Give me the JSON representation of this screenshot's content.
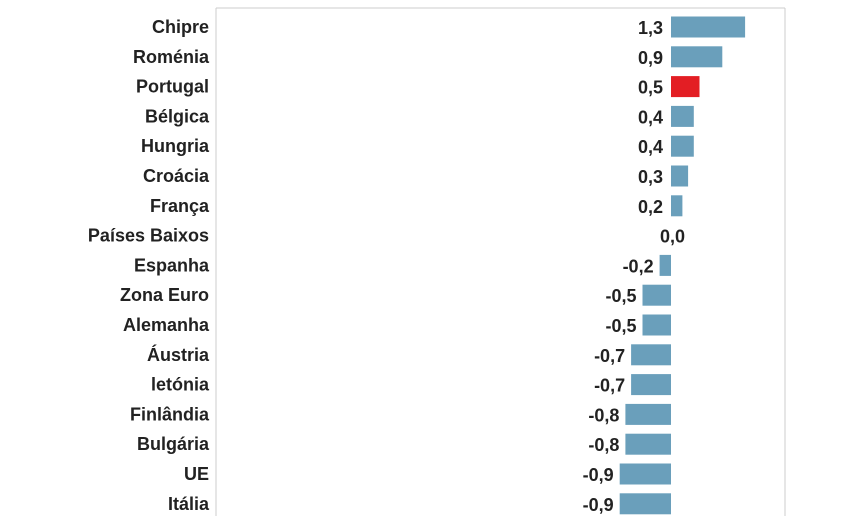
{
  "chart_data": {
    "type": "bar",
    "orientation": "horizontal",
    "categories": [
      "Chipre",
      "Roménia",
      "Portugal",
      "Bélgica",
      "Hungria",
      "Croácia",
      "França",
      "Países Baixos",
      "Espanha",
      "Zona Euro",
      "Alemanha",
      "Áustria",
      "letónia",
      "Finlândia",
      "Bulgária",
      "UE",
      "Itália"
    ],
    "values": [
      1.3,
      0.9,
      0.5,
      0.4,
      0.4,
      0.3,
      0.2,
      0.0,
      -0.2,
      -0.5,
      -0.5,
      -0.7,
      -0.7,
      -0.8,
      -0.8,
      -0.9,
      -0.9
    ],
    "value_labels": [
      "1,3",
      "0,9",
      "0,5",
      "0,4",
      "0,4",
      "0,3",
      "0,2",
      "0,0",
      "-0,2",
      "-0,5",
      "-0,5",
      "-0,7",
      "-0,7",
      "-0,8",
      "-0,8",
      "-0,9",
      "-0,9"
    ],
    "highlight_category": "Portugal",
    "colors": {
      "default": "#6a9fbb",
      "highlight": "#e31e24",
      "frame": "#cccccc",
      "text": "#222222"
    },
    "xlim": [
      -0.9,
      1.3
    ],
    "title": "",
    "xlabel": "",
    "ylabel": ""
  }
}
